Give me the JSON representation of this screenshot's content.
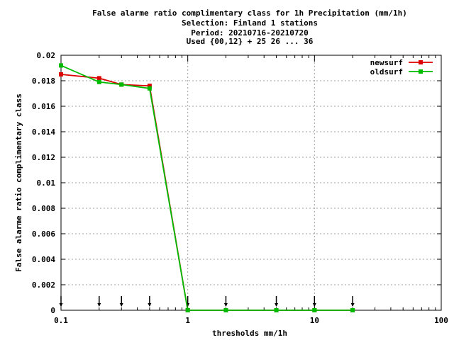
{
  "title_lines": [
    "False alarme ratio complimentary class  for 1h Precipitation (mm/1h)",
    "Selection: Finland      1 stations",
    "Period: 20210716-20210720",
    "Used {00,12} + 25 26 ... 36"
  ],
  "colors": {
    "newsurf": "#dd0000",
    "oldsurf": "#00bb00",
    "grid": "#a0a0a0",
    "axis": "#000000",
    "markers": "#000000"
  },
  "chart_data": {
    "type": "line",
    "title": "False alarme ratio complimentary class  for 1h Precipitation (mm/1h)",
    "subtitle": [
      "Selection: Finland      1 stations",
      "Period: 20210716-20210720",
      "Used {00,12} + 25 26 ... 36"
    ],
    "xlabel": "thresholds mm/1h",
    "ylabel": "False alarme ratio complimentary class",
    "xscale": "log",
    "xlim": [
      0.1,
      100
    ],
    "ylim": [
      0,
      0.02
    ],
    "grid": true,
    "legend_position": "top-right",
    "xticks": [
      {
        "value": 0.1,
        "label": "0.1"
      },
      {
        "value": 1,
        "label": "1"
      },
      {
        "value": 10,
        "label": "10"
      },
      {
        "value": 100,
        "label": "100"
      }
    ],
    "yticks": [
      {
        "value": 0,
        "label": "0"
      },
      {
        "value": 0.002,
        "label": "0.002"
      },
      {
        "value": 0.004,
        "label": "0.004"
      },
      {
        "value": 0.006,
        "label": "0.006"
      },
      {
        "value": 0.008,
        "label": "0.008"
      },
      {
        "value": 0.01,
        "label": "0.01"
      },
      {
        "value": 0.012,
        "label": "0.012"
      },
      {
        "value": 0.014,
        "label": "0.014"
      },
      {
        "value": 0.016,
        "label": "0.016"
      },
      {
        "value": 0.018,
        "label": "0.018"
      },
      {
        "value": 0.02,
        "label": "0.02"
      }
    ],
    "threshold_markers": [
      0.1,
      0.2,
      0.3,
      0.5,
      1,
      2,
      5,
      10,
      20
    ],
    "series": [
      {
        "name": "newsurf",
        "color": "#dd0000",
        "x": [
          0.1,
          0.2,
          0.3,
          0.5,
          1,
          2,
          5,
          10,
          20
        ],
        "y": [
          0.0185,
          0.0182,
          0.0177,
          0.0176,
          0,
          0,
          0,
          0,
          0
        ]
      },
      {
        "name": "oldsurf",
        "color": "#00bb00",
        "x": [
          0.1,
          0.2,
          0.3,
          0.5,
          1,
          2,
          5,
          10,
          20
        ],
        "y": [
          0.0192,
          0.0179,
          0.0177,
          0.0174,
          0,
          0,
          0,
          0,
          0
        ]
      }
    ]
  }
}
